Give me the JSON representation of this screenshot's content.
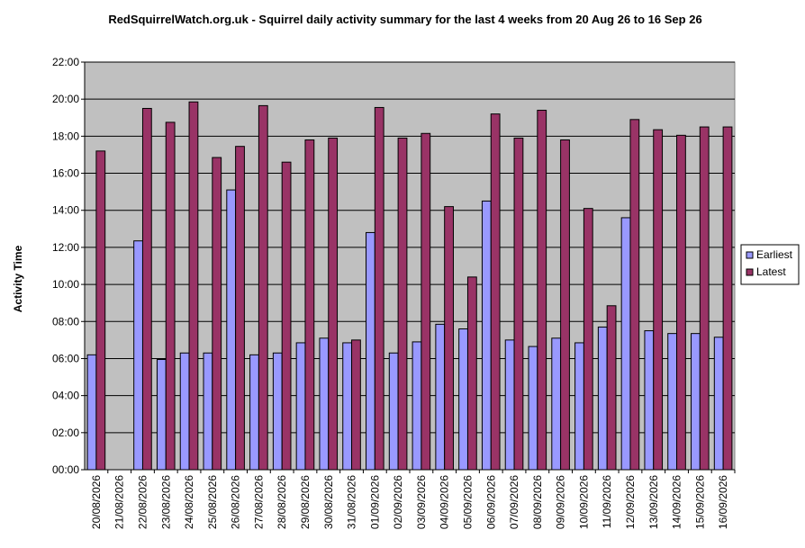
{
  "chart_data": {
    "type": "bar",
    "title": "RedSquirrelWatch.org.uk - Squirrel daily activity summary for the last 4 weeks from 20 Aug 26 to 16 Sep 26",
    "xlabel": "",
    "ylabel": "Activity Time",
    "ylim": [
      0,
      22
    ],
    "yticks": [
      "00:00",
      "02:00",
      "04:00",
      "06:00",
      "08:00",
      "10:00",
      "12:00",
      "14:00",
      "16:00",
      "18:00",
      "20:00",
      "22:00"
    ],
    "grid": true,
    "legend_position": "right",
    "categories": [
      "20/08/2026",
      "21/08/2026",
      "22/08/2026",
      "23/08/2026",
      "24/08/2026",
      "25/08/2026",
      "26/08/2026",
      "27/08/2026",
      "28/08/2026",
      "29/08/2026",
      "30/08/2026",
      "31/08/2026",
      "01/09/2026",
      "02/09/2026",
      "03/09/2026",
      "04/09/2026",
      "05/09/2026",
      "06/09/2026",
      "07/09/2026",
      "08/09/2026",
      "09/09/2026",
      "10/09/2026",
      "11/09/2026",
      "12/09/2026",
      "13/09/2026",
      "14/09/2026",
      "15/09/2026",
      "16/09/2026"
    ],
    "series": [
      {
        "name": "Earliest",
        "color": "#9999ff",
        "values": [
          6.2,
          null,
          12.35,
          5.95,
          6.3,
          6.3,
          15.1,
          6.2,
          6.3,
          6.85,
          7.1,
          6.85,
          12.8,
          6.3,
          6.9,
          7.85,
          7.6,
          14.5,
          7.0,
          6.65,
          7.1,
          6.85,
          7.7,
          13.6,
          7.5,
          7.35,
          7.35,
          7.15
        ]
      },
      {
        "name": "Latest",
        "color": "#993366",
        "values": [
          17.2,
          null,
          19.5,
          18.75,
          19.85,
          16.85,
          17.45,
          19.65,
          16.6,
          17.8,
          17.9,
          7.0,
          19.55,
          17.9,
          18.15,
          14.2,
          10.4,
          19.2,
          17.9,
          19.4,
          17.8,
          14.1,
          8.85,
          18.9,
          18.35,
          18.05,
          18.5,
          18.5
        ]
      }
    ]
  },
  "colors": {
    "plot_background": "#c0c0c0",
    "gridline": "#000000"
  }
}
